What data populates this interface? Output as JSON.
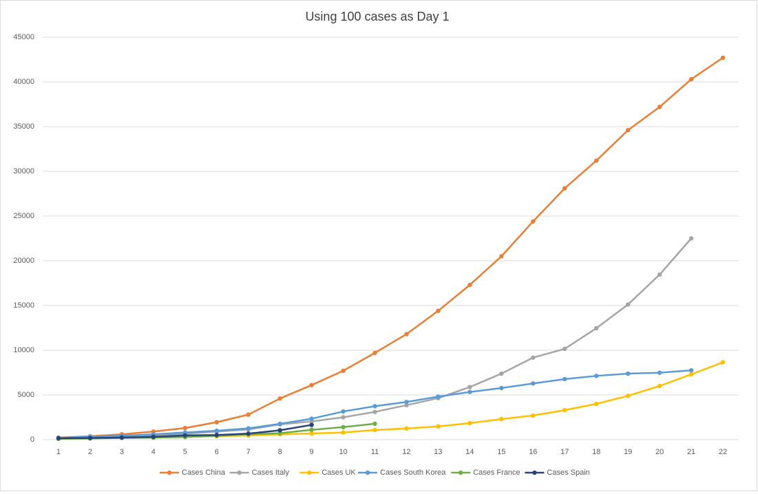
{
  "chart_data": {
    "type": "line",
    "title": "Using 100 cases as Day 1",
    "categories": [
      "1",
      "2",
      "3",
      "4",
      "5",
      "6",
      "7",
      "8",
      "9",
      "10",
      "11",
      "12",
      "13",
      "14",
      "15",
      "16",
      "17",
      "18",
      "19",
      "20",
      "21",
      "22"
    ],
    "ylim": [
      0,
      45000
    ],
    "yticks": [
      0,
      5000,
      10000,
      15000,
      20000,
      25000,
      30000,
      35000,
      40000,
      45000
    ],
    "grid": true,
    "legend": "bottom",
    "series": [
      {
        "name": "Cases China",
        "color": "#ed7d31",
        "values": [
          230,
          380,
          600,
          900,
          1300,
          1950,
          2800,
          4600,
          6100,
          7700,
          9700,
          11800,
          14400,
          17300,
          20500,
          24400,
          28100,
          31200,
          34600,
          37200,
          40300,
          42700
        ]
      },
      {
        "name": "Cases Italy",
        "color": "#a5a5a5",
        "values": [
          150,
          230,
          320,
          450,
          650,
          890,
          1130,
          1700,
          2040,
          2500,
          3100,
          3850,
          4640,
          5880,
          7380,
          9170,
          10150,
          12460,
          15110,
          18450,
          22500,
          null
        ]
      },
      {
        "name": "Cases UK",
        "color": "#ffc000",
        "values": [
          115,
          160,
          210,
          270,
          320,
          380,
          460,
          590,
          690,
          800,
          1080,
          1250,
          1480,
          1850,
          2300,
          2700,
          3300,
          4000,
          4900,
          6000,
          7300,
          8650
        ]
      },
      {
        "name": "Cases South Korea",
        "color": "#5b9bd5",
        "values": [
          200,
          350,
          430,
          600,
          800,
          1000,
          1260,
          1770,
          2340,
          3150,
          3740,
          4210,
          4810,
          5330,
          5770,
          6280,
          6770,
          7130,
          7380,
          7480,
          7750,
          null
        ]
      },
      {
        "name": "Cases France",
        "color": "#70ad47",
        "values": [
          100,
          130,
          190,
          210,
          290,
          420,
          610,
          720,
          1100,
          1400,
          1780,
          null,
          null,
          null,
          null,
          null,
          null,
          null,
          null,
          null,
          null,
          null
        ]
      },
      {
        "name": "Cases Spain",
        "color": "#264478",
        "values": [
          150,
          180,
          230,
          320,
          470,
          520,
          670,
          1050,
          1650,
          null,
          null,
          null,
          null,
          null,
          null,
          null,
          null,
          null,
          null,
          null,
          null,
          null
        ]
      }
    ]
  }
}
